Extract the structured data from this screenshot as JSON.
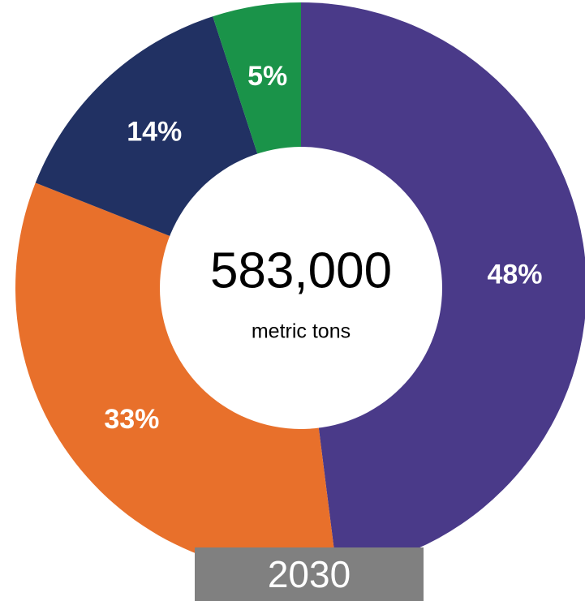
{
  "chart_data": {
    "type": "pie",
    "donut": true,
    "values": [
      48,
      33,
      14,
      5
    ],
    "value_labels": [
      "48%",
      "33%",
      "14%",
      "5%"
    ],
    "colors": [
      "#4a3a89",
      "#e8702b",
      "#213163",
      "#1a9349"
    ],
    "center_label": "583,000",
    "center_sublabel": "metric tons",
    "footer": "2030"
  }
}
